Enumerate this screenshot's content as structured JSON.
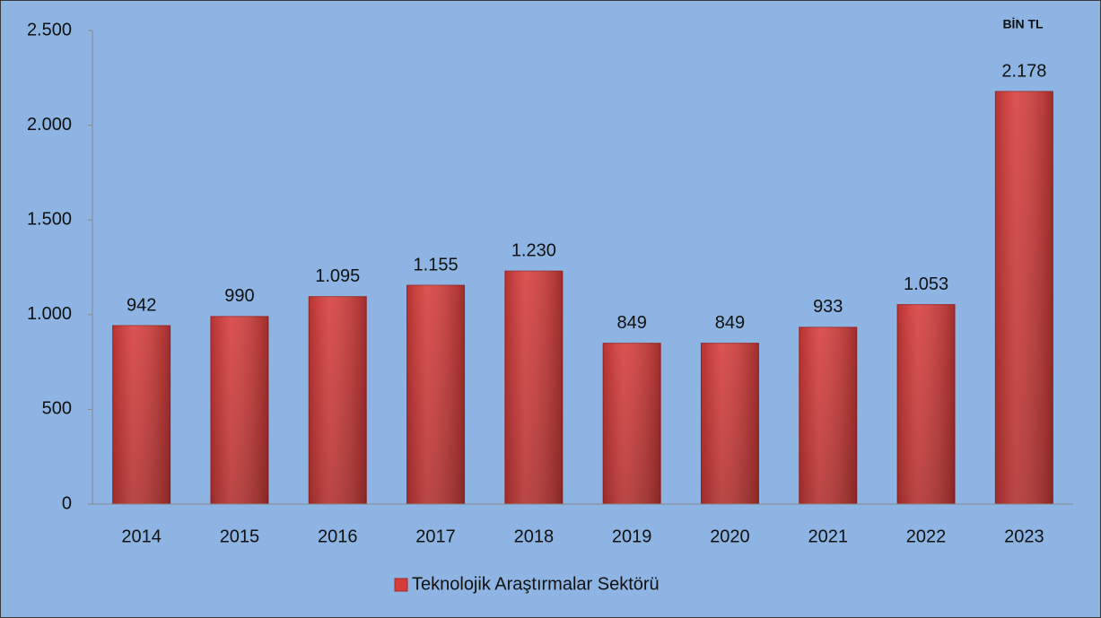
{
  "chart_data": {
    "type": "bar",
    "annotation": "BİN TL",
    "categories": [
      "2014",
      "2015",
      "2016",
      "2017",
      "2018",
      "2019",
      "2020",
      "2021",
      "2022",
      "2023"
    ],
    "series": [
      {
        "name": "Teknolojik Araştırmalar Sektörü",
        "color": "#d63c3a",
        "values": [
          942,
          990,
          1095,
          1155,
          1230,
          849,
          849,
          933,
          1053,
          2178
        ],
        "value_labels": [
          "942",
          "990",
          "1.095",
          "1.155",
          "1.230",
          "849",
          "849",
          "933",
          "1.053",
          "2.178"
        ]
      }
    ],
    "ylim": [
      0,
      2500
    ],
    "yticks": [
      0,
      500,
      {
        "value": 1000,
        "label": "1.000"
      },
      {
        "value": 1500,
        "label": "1.500"
      },
      {
        "value": 2000,
        "label": "2.000"
      },
      {
        "value": 2500,
        "label": "2.500"
      }
    ],
    "grid": false,
    "legend": "bottom"
  }
}
